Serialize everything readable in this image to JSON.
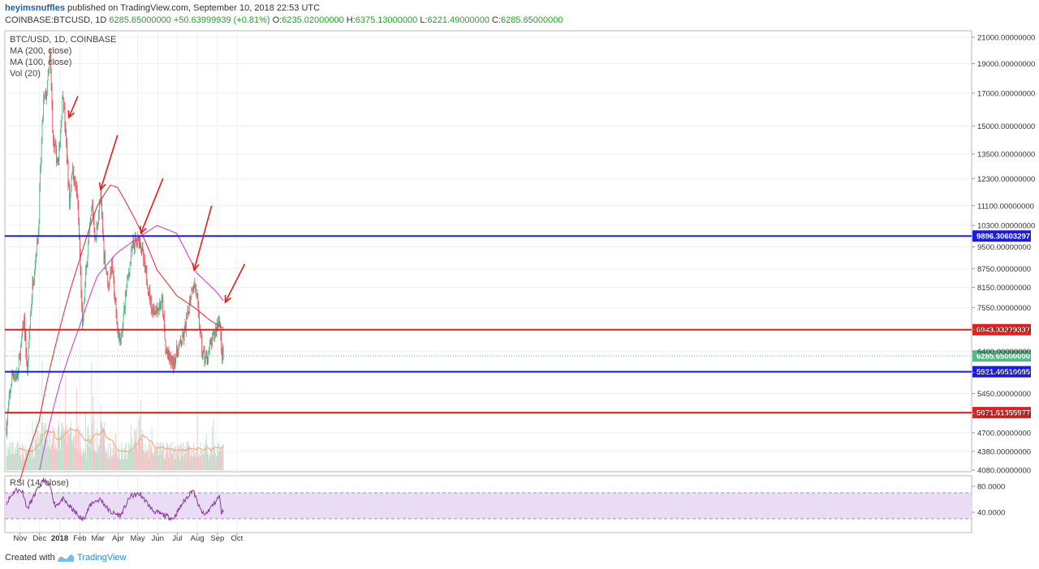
{
  "header": {
    "author": "heyimsnuffles",
    "published": " published on TradingView.com, September 10, 2018 22:53 UTC",
    "symbol": "COINBASE:BTCUSD, 1D",
    "last": "6285.65000000",
    "change": "+50.63999939 (+0.81%)",
    "o_label": "O:",
    "o_value": "6235.02000000",
    "h_label": "H:",
    "h_value": "6375.13000000",
    "l_label": "L:",
    "l_value": "6221.49000000",
    "c_label": "C:",
    "c_value": "6285.65000000"
  },
  "legend": {
    "symbol_line": "BTC/USD, 1D, COINBASE",
    "ma200": "MA (200, close)",
    "ma100": "MA (100, close)",
    "vol": "Vol (20)",
    "rsi": "RSI (14, close)"
  },
  "footer": {
    "created_with": "Created with",
    "brand": "TradingView"
  },
  "colors": {
    "up": "#53b987",
    "down": "#eb4d5c",
    "ma200": "#e0383b",
    "ma100": "#cc44dd",
    "blue_line": "#1a1ae6",
    "red_line": "#e81c1c",
    "rsi": "#8a3a9e",
    "rsi_band": "#eadcf5",
    "vol_up": "#b8e0cc",
    "vol_down": "#f4c0c4",
    "vol_ma": "#f2a66b",
    "arrow": "#e81c1c"
  },
  "chart_data": {
    "type": "candlestick",
    "scale": "log",
    "price_ticks": [
      "21000.00000000",
      "19000.00000000",
      "17000.00000000",
      "15000.00000000",
      "13500.00000000",
      "12300.00000000",
      "11100.00000000",
      "10300.00000000",
      "9500.00000000",
      "8750.00000000",
      "8150.00000000",
      "7550.00000000",
      "6950.00000000",
      "6400.00000000",
      "5900.00000000",
      "5450.00000000",
      "5050.00000000",
      "4700.00000000",
      "4380.00000000",
      "4080.00000000"
    ],
    "price_ticks_values": [
      21000,
      19000,
      17000,
      15000,
      13500,
      12300,
      11100,
      10300,
      9500,
      8750,
      8150,
      7550,
      6950,
      6400,
      5900,
      5450,
      5050,
      4700,
      4380,
      4080
    ],
    "month_labels": [
      "Nov",
      "Dec",
      "2018",
      "Feb",
      "Mar",
      "Apr",
      "May",
      "Jun",
      "Jul",
      "Aug",
      "Sep",
      "Oct"
    ],
    "rsi_ticks": [
      "80.0000",
      "40.0000"
    ],
    "rsi_ticks_values": [
      80,
      40
    ],
    "rsi_band": [
      70,
      30
    ],
    "horizontal_lines": [
      {
        "value": 9896.30603297,
        "label": "9896.30603297",
        "kind": "blue"
      },
      {
        "value": 6943.33279337,
        "label": "6943.33279337",
        "kind": "red"
      },
      {
        "value": 5921.40510095,
        "label": "5921.40510095",
        "kind": "blue"
      },
      {
        "value": 5071.61355977,
        "label": "5071.61355977",
        "kind": "red"
      }
    ],
    "last_price": {
      "value": 6285.65,
      "label": "6285.65000000"
    },
    "close_path": [
      [
        "2017-10-11",
        4800
      ],
      [
        "2017-10-20",
        5900
      ],
      [
        "2017-10-28",
        5800
      ],
      [
        "2017-11-07",
        7200
      ],
      [
        "2017-11-12",
        5900
      ],
      [
        "2017-11-20",
        8200
      ],
      [
        "2017-11-29",
        10000
      ],
      [
        "2017-12-07",
        16500
      ],
      [
        "2017-12-12",
        17000
      ],
      [
        "2017-12-17",
        19500
      ],
      [
        "2017-12-22",
        14000
      ],
      [
        "2017-12-30",
        13000
      ],
      [
        "2018-01-06",
        17100
      ],
      [
        "2018-01-10",
        14500
      ],
      [
        "2018-01-16",
        11200
      ],
      [
        "2018-01-20",
        12800
      ],
      [
        "2018-01-28",
        11500
      ],
      [
        "2018-02-01",
        9200
      ],
      [
        "2018-02-05",
        6900
      ],
      [
        "2018-02-10",
        8500
      ],
      [
        "2018-02-20",
        11100
      ],
      [
        "2018-02-25",
        9700
      ],
      [
        "2018-03-05",
        11500
      ],
      [
        "2018-03-10",
        9300
      ],
      [
        "2018-03-17",
        8200
      ],
      [
        "2018-03-22",
        8900
      ],
      [
        "2018-03-31",
        6900
      ],
      [
        "2018-04-06",
        6600
      ],
      [
        "2018-04-12",
        7900
      ],
      [
        "2018-04-24",
        9600
      ],
      [
        "2018-05-05",
        9800
      ],
      [
        "2018-05-10",
        9000
      ],
      [
        "2018-05-23",
        7500
      ],
      [
        "2018-05-31",
        7500
      ],
      [
        "2018-06-08",
        7700
      ],
      [
        "2018-06-13",
        6400
      ],
      [
        "2018-06-24",
        6100
      ],
      [
        "2018-07-01",
        6400
      ],
      [
        "2018-07-10",
        6700
      ],
      [
        "2018-07-17",
        7300
      ],
      [
        "2018-07-24",
        8200
      ],
      [
        "2018-07-29",
        8200
      ],
      [
        "2018-08-08",
        6400
      ],
      [
        "2018-08-14",
        6200
      ],
      [
        "2018-08-25",
        6700
      ],
      [
        "2018-09-04",
        7300
      ],
      [
        "2018-09-07",
        6400
      ],
      [
        "2018-09-10",
        6285.65
      ]
    ],
    "ma200": [
      [
        "2017-10-31",
        3900
      ],
      [
        "2017-11-30",
        4900
      ],
      [
        "2017-12-31",
        6900
      ],
      [
        "2018-01-31",
        9000
      ],
      [
        "2018-02-28",
        11100
      ],
      [
        "2018-03-20",
        12000
      ],
      [
        "2018-03-31",
        11900
      ],
      [
        "2018-04-30",
        10400
      ],
      [
        "2018-05-31",
        8700
      ],
      [
        "2018-06-30",
        7900
      ],
      [
        "2018-07-31",
        7500
      ],
      [
        "2018-08-20",
        7200
      ],
      [
        "2018-09-10",
        6980
      ]
    ],
    "ma100": [
      [
        "2017-12-01",
        4080
      ],
      [
        "2017-12-31",
        5600
      ],
      [
        "2018-01-31",
        7000
      ],
      [
        "2018-02-28",
        8500
      ],
      [
        "2018-03-31",
        9300
      ],
      [
        "2018-04-30",
        9800
      ],
      [
        "2018-05-31",
        10300
      ],
      [
        "2018-06-30",
        10000
      ],
      [
        "2018-07-31",
        8600
      ],
      [
        "2018-08-31",
        8000
      ],
      [
        "2018-09-10",
        7750
      ]
    ],
    "rsi": [
      [
        "2017-10-11",
        55
      ],
      [
        "2017-10-25",
        75
      ],
      [
        "2017-11-05",
        72
      ],
      [
        "2017-11-12",
        45
      ],
      [
        "2017-11-25",
        70
      ],
      [
        "2017-12-07",
        90
      ],
      [
        "2017-12-17",
        80
      ],
      [
        "2017-12-25",
        50
      ],
      [
        "2018-01-06",
        60
      ],
      [
        "2018-01-20",
        45
      ],
      [
        "2018-02-05",
        28
      ],
      [
        "2018-02-20",
        55
      ],
      [
        "2018-03-05",
        60
      ],
      [
        "2018-03-20",
        40
      ],
      [
        "2018-04-05",
        35
      ],
      [
        "2018-04-20",
        65
      ],
      [
        "2018-05-05",
        68
      ],
      [
        "2018-05-25",
        42
      ],
      [
        "2018-06-12",
        35
      ],
      [
        "2018-06-25",
        30
      ],
      [
        "2018-07-10",
        55
      ],
      [
        "2018-07-25",
        75
      ],
      [
        "2018-08-05",
        45
      ],
      [
        "2018-08-12",
        35
      ],
      [
        "2018-08-28",
        55
      ],
      [
        "2018-09-04",
        65
      ],
      [
        "2018-09-07",
        40
      ],
      [
        "2018-09-10",
        42
      ]
    ],
    "arrows": [
      {
        "from": [
          "2018-01-29",
          16800
        ],
        "to": [
          "2018-01-15",
          15500
        ]
      },
      {
        "from": [
          "2018-03-31",
          14500
        ],
        "to": [
          "2018-03-05",
          11800
        ]
      },
      {
        "from": [
          "2018-06-09",
          12300
        ],
        "to": [
          "2018-05-06",
          10000
        ]
      },
      {
        "from": [
          "2018-08-23",
          11100
        ],
        "to": [
          "2018-07-27",
          8700
        ]
      },
      {
        "from": [
          "2018-10-13",
          8900
        ],
        "to": [
          "2018-09-13",
          7700
        ]
      }
    ]
  }
}
